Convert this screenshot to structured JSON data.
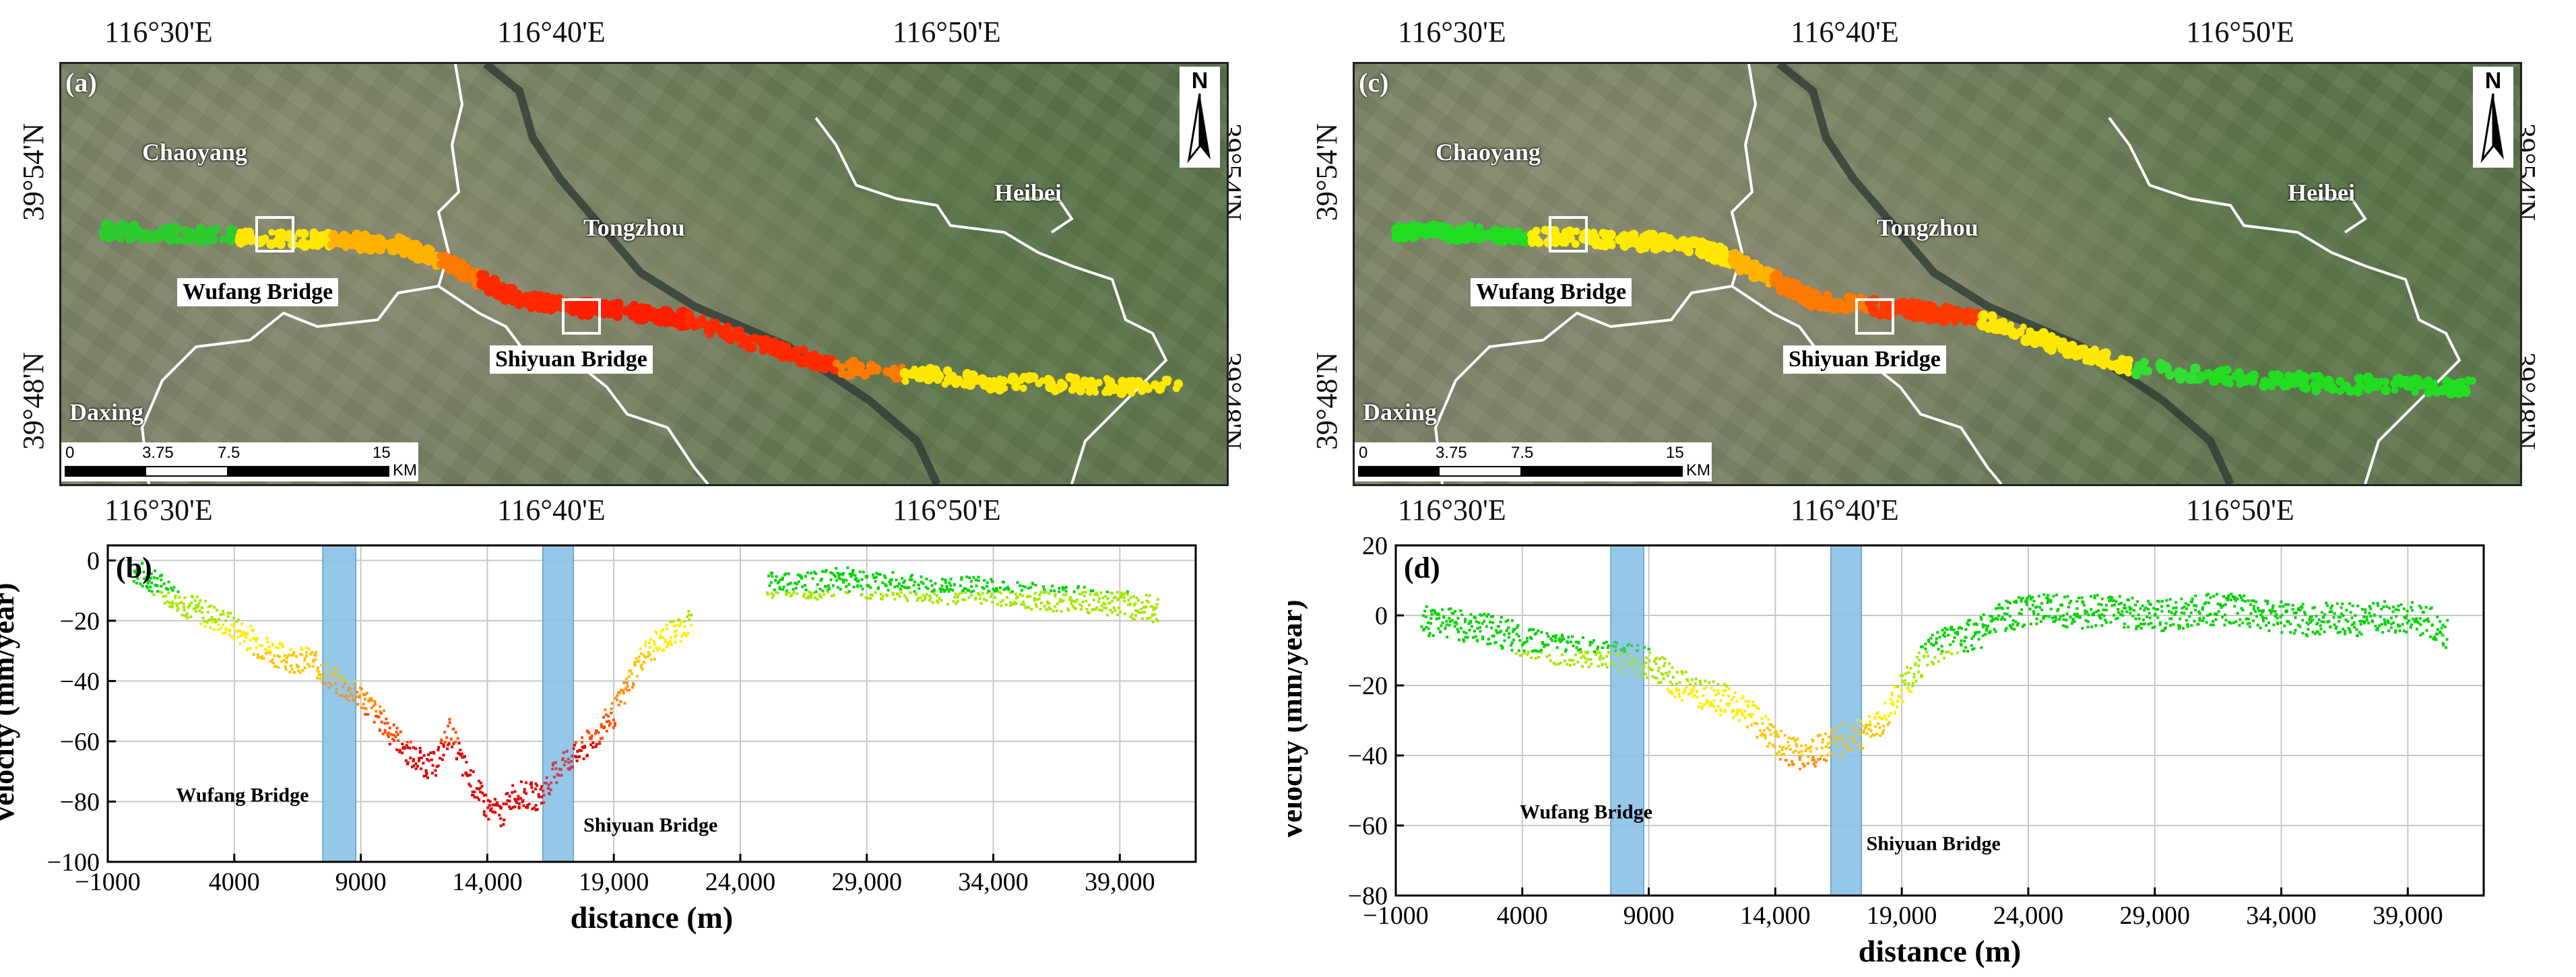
{
  "maps": [
    {
      "panel_label": "(a)",
      "lon_labels_top": [
        "116°30'E",
        "116°40'E",
        "116°50'E"
      ],
      "lon_labels_bottom": [
        "116°30'E",
        "116°40'E",
        "116°50'E"
      ],
      "lat_labels": [
        "39°54'N",
        "39°48'N"
      ],
      "place_labels": {
        "chaoyang": "Chaoyang",
        "tongzhou": "Tongzhou",
        "heibei": "Heibei",
        "daxing": "Daxing"
      },
      "bridge_labels": {
        "wufang": "Wufang Bridge",
        "shiyuan": "Shiyuan Bridge"
      },
      "north": "N",
      "scale": {
        "ticks": [
          "0",
          "3.75",
          "7.5",
          "15"
        ],
        "unit": "KM"
      },
      "track_colors": [
        "#2ecc2e",
        "#ffe800",
        "#ffb300",
        "#ff7a00",
        "#ff2a00",
        "#ff1e00",
        "#ff1e00",
        "#ff2a00",
        "#ff7a00",
        "#ffe800",
        "#ffe800",
        "#ffe800"
      ]
    },
    {
      "panel_label": "(c)",
      "lon_labels_top": [
        "116°30'E",
        "116°40'E",
        "116°50'E"
      ],
      "lon_labels_bottom": [
        "116°30'E",
        "116°40'E",
        "116°50'E"
      ],
      "lat_labels": [
        "39°54'N",
        "39°48'N"
      ],
      "place_labels": {
        "chaoyang": "Chaoyang",
        "tongzhou": "Tongzhou",
        "heibei": "Heibei",
        "daxing": "Daxing"
      },
      "bridge_labels": {
        "wufang": "Wufang Bridge",
        "shiyuan": "Shiyuan Bridge"
      },
      "north": "N",
      "scale": {
        "ticks": [
          "0",
          "3.75",
          "7.5",
          "15"
        ],
        "unit": "KM"
      },
      "track_colors": [
        "#22dd22",
        "#ffee00",
        "#ffe800",
        "#ffb300",
        "#ff7a00",
        "#ff3a00",
        "#ff3a00",
        "#ffe800",
        "#33dd33",
        "#22dd22",
        "#22dd22",
        "#22dd22"
      ]
    }
  ],
  "chart_data": [
    {
      "type": "scatter",
      "panel_label": "(b)",
      "xlabel": "distance (m)",
      "ylabel": "Velocity (mm/year)",
      "xlim": [
        -1000,
        42000
      ],
      "ylim": [
        -100,
        5
      ],
      "xticks": [
        -1000,
        4000,
        9000,
        14000,
        19000,
        24000,
        29000,
        34000,
        39000
      ],
      "xtick_labels": [
        "−1000",
        "4000",
        "9000",
        "14,000",
        "19,000",
        "24,000",
        "29,000",
        "34,000",
        "39,000"
      ],
      "yticks": [
        -100,
        -80,
        -60,
        -40,
        -20,
        0
      ],
      "ytick_labels": [
        "−100",
        "−80",
        "−60",
        "−40",
        "−20",
        "0"
      ],
      "bridge_bands": [
        {
          "x0": 7500,
          "x1": 8800
        },
        {
          "x0": 16200,
          "x1": 17400
        }
      ],
      "annotations": [
        {
          "text": "Wufang Bridge",
          "x": 1700,
          "y": -80
        },
        {
          "text": "Shiyuan Bridge",
          "x": 17800,
          "y": -90
        }
      ],
      "profile": [
        {
          "x": 0,
          "y": -3
        },
        {
          "x": 1000,
          "y": -8
        },
        {
          "x": 2000,
          "y": -14
        },
        {
          "x": 3000,
          "y": -18
        },
        {
          "x": 4000,
          "y": -22
        },
        {
          "x": 5000,
          "y": -28
        },
        {
          "x": 6000,
          "y": -32
        },
        {
          "x": 7000,
          "y": -33
        },
        {
          "x": 8000,
          "y": -40
        },
        {
          "x": 9000,
          "y": -45
        },
        {
          "x": 10000,
          "y": -55
        },
        {
          "x": 11000,
          "y": -65
        },
        {
          "x": 11800,
          "y": -68
        },
        {
          "x": 12500,
          "y": -56
        },
        {
          "x": 13000,
          "y": -68
        },
        {
          "x": 13500,
          "y": -75
        },
        {
          "x": 14000,
          "y": -82
        },
        {
          "x": 14500,
          "y": -84
        },
        {
          "x": 15000,
          "y": -77
        },
        {
          "x": 16000,
          "y": -78
        },
        {
          "x": 16500,
          "y": -72
        },
        {
          "x": 17000,
          "y": -66
        },
        {
          "x": 17500,
          "y": -64
        },
        {
          "x": 18000,
          "y": -60
        },
        {
          "x": 19000,
          "y": -50
        },
        {
          "x": 20000,
          "y": -32
        },
        {
          "x": 21000,
          "y": -25
        },
        {
          "x": 22000,
          "y": -20
        },
        {
          "x": 25000,
          "y": -8
        },
        {
          "x": 26000,
          "y": -7
        },
        {
          "x": 27000,
          "y": -8
        },
        {
          "x": 28000,
          "y": -6
        },
        {
          "x": 29000,
          "y": -8
        },
        {
          "x": 30000,
          "y": -8
        },
        {
          "x": 31000,
          "y": -9
        },
        {
          "x": 32000,
          "y": -10
        },
        {
          "x": 33000,
          "y": -9
        },
        {
          "x": 34000,
          "y": -10
        },
        {
          "x": 35000,
          "y": -11
        },
        {
          "x": 36000,
          "y": -12
        },
        {
          "x": 37000,
          "y": -12
        },
        {
          "x": 38000,
          "y": -13
        },
        {
          "x": 39000,
          "y": -14
        },
        {
          "x": 40500,
          "y": -16
        }
      ]
    },
    {
      "type": "scatter",
      "panel_label": "(d)",
      "xlabel": "distance (m)",
      "ylabel": "Velocity (mm/year)",
      "xlim": [
        -1000,
        42000
      ],
      "ylim": [
        -80,
        20
      ],
      "xticks": [
        -1000,
        4000,
        9000,
        14000,
        19000,
        24000,
        29000,
        34000,
        39000
      ],
      "xtick_labels": [
        "−1000",
        "4000",
        "9000",
        "14,000",
        "19,000",
        "24,000",
        "29,000",
        "34,000",
        "39,000"
      ],
      "yticks": [
        -80,
        -60,
        -40,
        -20,
        0,
        20
      ],
      "ytick_labels": [
        "−80",
        "−60",
        "−40",
        "−20",
        "0",
        "20"
      ],
      "bridge_bands": [
        {
          "x0": 7500,
          "x1": 8800
        },
        {
          "x0": 16200,
          "x1": 17400
        }
      ],
      "annotations": [
        {
          "text": "Wufang Bridge",
          "x": 3900,
          "y": -58
        },
        {
          "text": "Shiyuan Bridge",
          "x": 17600,
          "y": -67
        }
      ],
      "profile": [
        {
          "x": 0,
          "y": -1
        },
        {
          "x": 1000,
          "y": -2
        },
        {
          "x": 2000,
          "y": -3
        },
        {
          "x": 3000,
          "y": -4
        },
        {
          "x": 4000,
          "y": -7
        },
        {
          "x": 5000,
          "y": -9
        },
        {
          "x": 6000,
          "y": -10
        },
        {
          "x": 7000,
          "y": -11
        },
        {
          "x": 8000,
          "y": -12
        },
        {
          "x": 9000,
          "y": -13
        },
        {
          "x": 10000,
          "y": -19
        },
        {
          "x": 11000,
          "y": -22
        },
        {
          "x": 12000,
          "y": -24
        },
        {
          "x": 13000,
          "y": -28
        },
        {
          "x": 14000,
          "y": -36
        },
        {
          "x": 15000,
          "y": -40
        },
        {
          "x": 16000,
          "y": -37
        },
        {
          "x": 17000,
          "y": -34
        },
        {
          "x": 18000,
          "y": -32
        },
        {
          "x": 19000,
          "y": -20
        },
        {
          "x": 20000,
          "y": -10
        },
        {
          "x": 21000,
          "y": -6
        },
        {
          "x": 22000,
          "y": -5
        },
        {
          "x": 23000,
          "y": 0
        },
        {
          "x": 24000,
          "y": 2
        },
        {
          "x": 25000,
          "y": 2
        },
        {
          "x": 26000,
          "y": 1
        },
        {
          "x": 27000,
          "y": 2
        },
        {
          "x": 28000,
          "y": 1
        },
        {
          "x": 29000,
          "y": 0
        },
        {
          "x": 30000,
          "y": 1
        },
        {
          "x": 31000,
          "y": 2
        },
        {
          "x": 32000,
          "y": 2
        },
        {
          "x": 33000,
          "y": 1
        },
        {
          "x": 34000,
          "y": 0
        },
        {
          "x": 35000,
          "y": -1
        },
        {
          "x": 36000,
          "y": 0
        },
        {
          "x": 37000,
          "y": -1
        },
        {
          "x": 38000,
          "y": 0
        },
        {
          "x": 39000,
          "y": 0
        },
        {
          "x": 40000,
          "y": -2
        },
        {
          "x": 40500,
          "y": -5
        }
      ]
    }
  ],
  "colors": {
    "band": "#8ec4e8",
    "band_edge": "#5a9cc9",
    "scale": [
      "#00d400",
      "#a6e800",
      "#ffee00",
      "#ffc400",
      "#ff8c00",
      "#ff4d00",
      "#e00000"
    ]
  }
}
